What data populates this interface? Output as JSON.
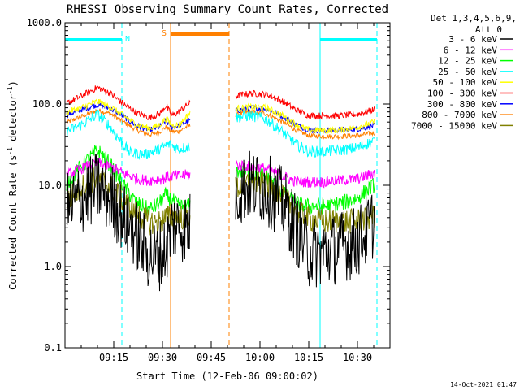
{
  "chart_data": {
    "type": "line",
    "title": "RHESSI Observing Summary Count Rates, Corrected",
    "xlabel": "Start Time (12-Feb-06 09:00:02)",
    "ylabel": "Corrected Count Rate (s⁻¹ detector⁻¹)",
    "ylabel_parts": {
      "base": "Corrected Count Rate (s",
      "sup1": "-1",
      "mid": " detector",
      "sup2": "-1",
      "end": ")"
    },
    "yscale": "log",
    "ylim": [
      0.1,
      1000
    ],
    "xlim_minutes": [
      0,
      100
    ],
    "grid": false,
    "legend_position": "right",
    "legend_header": [
      "Det 1,3,4,5,6,9,",
      "Att 0"
    ],
    "timestamp": "14-Oct-2021 01:47",
    "y_ticks": [
      {
        "value": 1000,
        "label": "1000.0"
      },
      {
        "value": 100,
        "label": "100.0"
      },
      {
        "value": 10,
        "label": "10.0"
      },
      {
        "value": 1,
        "label": "1.0"
      },
      {
        "value": 0.1,
        "label": "0.1"
      }
    ],
    "x_ticks": [
      {
        "value": 15,
        "label": "09:15"
      },
      {
        "value": 30,
        "label": "09:30"
      },
      {
        "value": 45,
        "label": "09:45"
      },
      {
        "value": 60,
        "label": "10:00"
      },
      {
        "value": 75,
        "label": "10:15"
      },
      {
        "value": 90,
        "label": "10:30"
      }
    ],
    "events": [
      {
        "type": "night",
        "label": "N",
        "start": 0,
        "end": 17.5,
        "color": "#00ffff"
      },
      {
        "type": "saa",
        "label": "S",
        "start": 32.5,
        "end": 50.5,
        "color": "#ff8000"
      },
      {
        "type": "night",
        "label": "",
        "start": 78.5,
        "end": 96,
        "color": "#00ffff"
      }
    ],
    "vlines": [
      {
        "x": 0,
        "color": "#00ffff",
        "style": "solid"
      },
      {
        "x": 17.5,
        "color": "#00ffff",
        "style": "dashed"
      },
      {
        "x": 32.5,
        "color": "#ff8000",
        "style": "solid"
      },
      {
        "x": 50.5,
        "color": "#ff8000",
        "style": "dashed"
      },
      {
        "x": 78.5,
        "color": "#00ffff",
        "style": "solid"
      },
      {
        "x": 96,
        "color": "#00ffff",
        "style": "dashed"
      }
    ],
    "segments_minutes": [
      [
        0.5,
        38.5
      ],
      [
        52.5,
        95.5
      ]
    ],
    "series": [
      {
        "name": "3 - 6 keV",
        "color": "#000000",
        "profile": [
          [
            0,
            5
          ],
          [
            5,
            7
          ],
          [
            10,
            9.5
          ],
          [
            14,
            7
          ],
          [
            18,
            4
          ],
          [
            22,
            2.5
          ],
          [
            25,
            1.5
          ],
          [
            28,
            1.3
          ],
          [
            31,
            1.6
          ],
          [
            33,
            3.2
          ],
          [
            35,
            3.2
          ],
          [
            38,
            3
          ],
          [
            52.5,
            8
          ],
          [
            57,
            10
          ],
          [
            62,
            9
          ],
          [
            67,
            6
          ],
          [
            71,
            3
          ],
          [
            75,
            1.5
          ],
          [
            80,
            1.5
          ],
          [
            85,
            1.8
          ],
          [
            90,
            2
          ],
          [
            95,
            3.5
          ]
        ],
        "noise": 0.45
      },
      {
        "name": "6 - 12 keV",
        "color": "#ff00ff",
        "profile": [
          [
            0,
            13
          ],
          [
            5,
            16
          ],
          [
            10,
            19
          ],
          [
            14,
            17
          ],
          [
            18,
            14
          ],
          [
            22,
            12
          ],
          [
            26,
            11.5
          ],
          [
            30,
            12
          ],
          [
            33,
            13
          ],
          [
            35,
            13
          ],
          [
            38,
            13.5
          ],
          [
            52.5,
            18
          ],
          [
            57,
            17
          ],
          [
            62,
            16
          ],
          [
            67,
            13
          ],
          [
            71,
            11
          ],
          [
            75,
            11
          ],
          [
            80,
            11
          ],
          [
            85,
            11.5
          ],
          [
            90,
            12
          ],
          [
            95,
            14
          ]
        ],
        "noise": 0.07
      },
      {
        "name": "12 - 25 keV",
        "color": "#00ff00",
        "profile": [
          [
            0,
            10
          ],
          [
            5,
            17
          ],
          [
            10,
            27
          ],
          [
            14,
            18
          ],
          [
            18,
            10
          ],
          [
            22,
            6
          ],
          [
            26,
            5
          ],
          [
            29,
            6
          ],
          [
            31,
            7.5
          ],
          [
            33,
            6.5
          ],
          [
            35,
            5.5
          ],
          [
            38,
            5.5
          ],
          [
            52.5,
            15
          ],
          [
            57,
            14
          ],
          [
            62,
            13
          ],
          [
            67,
            8
          ],
          [
            71,
            6
          ],
          [
            75,
            5.5
          ],
          [
            80,
            5.5
          ],
          [
            85,
            6
          ],
          [
            90,
            7
          ],
          [
            95,
            10
          ]
        ],
        "noise": 0.1
      },
      {
        "name": "25 - 50 keV",
        "color": "#00ffff",
        "profile": [
          [
            0,
            45
          ],
          [
            5,
            55
          ],
          [
            10,
            75
          ],
          [
            13,
            58
          ],
          [
            16,
            40
          ],
          [
            20,
            25
          ],
          [
            25,
            24
          ],
          [
            29,
            28
          ],
          [
            32,
            32
          ],
          [
            35,
            28
          ],
          [
            38,
            30
          ],
          [
            52.5,
            68
          ],
          [
            57,
            72
          ],
          [
            62,
            65
          ],
          [
            67,
            45
          ],
          [
            71,
            32
          ],
          [
            75,
            26
          ],
          [
            80,
            26
          ],
          [
            85,
            27
          ],
          [
            90,
            29
          ],
          [
            95,
            35
          ]
        ],
        "noise": 0.07
      },
      {
        "name": "50 - 100 keV",
        "color": "#ffff00",
        "profile": [
          [
            0,
            78
          ],
          [
            5,
            90
          ],
          [
            10,
            108
          ],
          [
            14,
            92
          ],
          [
            18,
            72
          ],
          [
            22,
            56
          ],
          [
            26,
            50
          ],
          [
            29,
            55
          ],
          [
            31,
            66
          ],
          [
            33,
            55
          ],
          [
            35,
            55
          ],
          [
            38,
            75
          ],
          [
            52.5,
            88
          ],
          [
            57,
            92
          ],
          [
            62,
            90
          ],
          [
            67,
            72
          ],
          [
            71,
            56
          ],
          [
            75,
            48
          ],
          [
            80,
            47
          ],
          [
            85,
            48
          ],
          [
            90,
            52
          ],
          [
            95,
            60
          ]
        ],
        "noise": 0.04
      },
      {
        "name": "100 - 300 keV",
        "color": "#ff0000",
        "profile": [
          [
            0,
            100
          ],
          [
            5,
            125
          ],
          [
            10,
            160
          ],
          [
            14,
            135
          ],
          [
            18,
            100
          ],
          [
            22,
            78
          ],
          [
            26,
            68
          ],
          [
            29,
            75
          ],
          [
            31,
            95
          ],
          [
            33,
            72
          ],
          [
            35,
            80
          ],
          [
            38,
            100
          ],
          [
            52.5,
            125
          ],
          [
            57,
            135
          ],
          [
            62,
            132
          ],
          [
            67,
            108
          ],
          [
            71,
            85
          ],
          [
            75,
            72
          ],
          [
            80,
            72
          ],
          [
            85,
            72
          ],
          [
            90,
            75
          ],
          [
            95,
            85
          ]
        ],
        "noise": 0.04
      },
      {
        "name": "300 - 800 keV",
        "color": "#0000ff",
        "profile": [
          [
            0,
            72
          ],
          [
            5,
            85
          ],
          [
            10,
            98
          ],
          [
            14,
            88
          ],
          [
            18,
            70
          ],
          [
            22,
            54
          ],
          [
            26,
            48
          ],
          [
            29,
            52
          ],
          [
            31,
            62
          ],
          [
            33,
            52
          ],
          [
            35,
            54
          ],
          [
            38,
            62
          ],
          [
            52.5,
            82
          ],
          [
            57,
            90
          ],
          [
            62,
            88
          ],
          [
            67,
            70
          ],
          [
            71,
            56
          ],
          [
            75,
            48
          ],
          [
            80,
            47
          ],
          [
            85,
            48
          ],
          [
            90,
            49
          ],
          [
            95,
            54
          ]
        ],
        "noise": 0.035
      },
      {
        "name": "800 - 7000 keV",
        "color": "#ff8000",
        "profile": [
          [
            0,
            58
          ],
          [
            5,
            70
          ],
          [
            10,
            84
          ],
          [
            14,
            76
          ],
          [
            18,
            60
          ],
          [
            22,
            48
          ],
          [
            26,
            42
          ],
          [
            29,
            45
          ],
          [
            31,
            52
          ],
          [
            33,
            46
          ],
          [
            35,
            46
          ],
          [
            38,
            54
          ],
          [
            52.5,
            74
          ],
          [
            57,
            80
          ],
          [
            62,
            76
          ],
          [
            67,
            60
          ],
          [
            71,
            48
          ],
          [
            75,
            41
          ],
          [
            80,
            40
          ],
          [
            85,
            40
          ],
          [
            90,
            41
          ],
          [
            95,
            44
          ]
        ],
        "noise": 0.03
      },
      {
        "name": "7000 - 15000 keV",
        "color": "#808000",
        "profile": [
          [
            0,
            6
          ],
          [
            5,
            9.5
          ],
          [
            10,
            12.5
          ],
          [
            14,
            9.5
          ],
          [
            18,
            6.5
          ],
          [
            22,
            4.5
          ],
          [
            26,
            3.5
          ],
          [
            29,
            3.5
          ],
          [
            31,
            4
          ],
          [
            33,
            4
          ],
          [
            35,
            4
          ],
          [
            38,
            4.2
          ],
          [
            52.5,
            9
          ],
          [
            57,
            11
          ],
          [
            62,
            10
          ],
          [
            67,
            7
          ],
          [
            71,
            5
          ],
          [
            75,
            3.8
          ],
          [
            80,
            3.6
          ],
          [
            85,
            3.6
          ],
          [
            90,
            3.6
          ],
          [
            95,
            4.2
          ]
        ],
        "noise": 0.16
      }
    ]
  }
}
